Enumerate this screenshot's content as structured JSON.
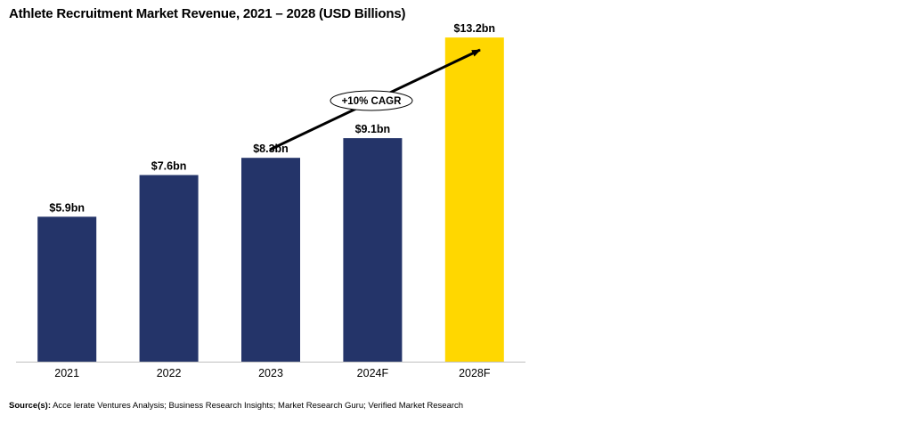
{
  "chart_data": {
    "type": "bar",
    "title": "Athlete Recruitment Market Revenue, 2021 – 2028 (USD Billions)",
    "categories": [
      "2021",
      "2022",
      "2023",
      "2024F",
      "2028F"
    ],
    "values": [
      5.9,
      7.6,
      8.3,
      9.1,
      13.2
    ],
    "data_labels": [
      "$5.9bn",
      "$7.6bn",
      "$8.3bn",
      "$9.1bn",
      "$13.2bn"
    ],
    "xlabel": "",
    "ylabel": "",
    "ylim": [
      0,
      14
    ],
    "grid": false,
    "legend": "none",
    "colors": {
      "actual": "#243469",
      "forecast": "#FFD700",
      "highlight_category": "2028F"
    },
    "annotation": {
      "text": "+10% CAGR",
      "type": "trend-arrow"
    }
  },
  "source": {
    "prefix": "Source(s):",
    "text": " Acce lerate Ventures Analysis; Business Research Insights; Market Research Guru; Verified Market Research"
  }
}
